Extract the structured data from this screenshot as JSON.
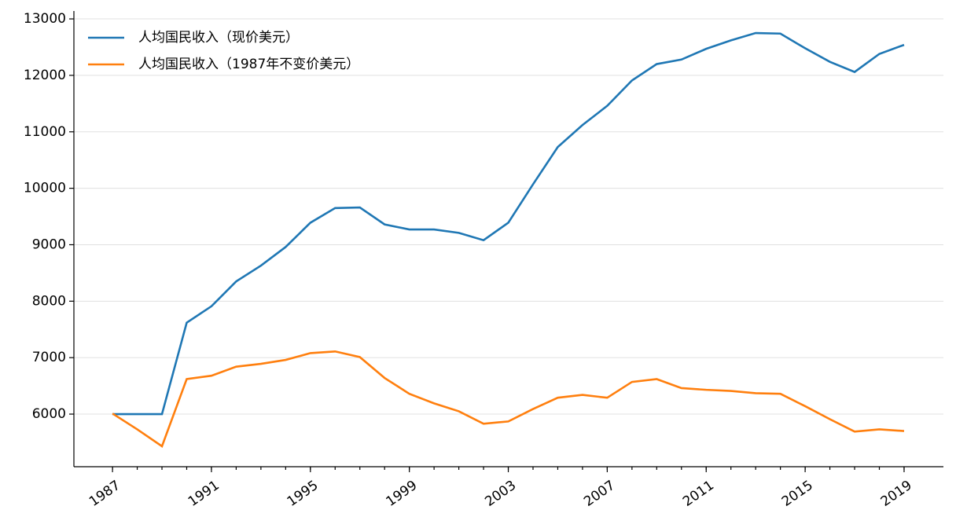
{
  "chart_data": {
    "type": "line",
    "x": [
      1987,
      1988,
      1989,
      1990,
      1991,
      1992,
      1993,
      1994,
      1995,
      1996,
      1997,
      1998,
      1999,
      2000,
      2001,
      2002,
      2003,
      2004,
      2005,
      2006,
      2007,
      2008,
      2009,
      2010,
      2011,
      2012,
      2013,
      2014,
      2015,
      2016,
      2017,
      2018,
      2019
    ],
    "series": [
      {
        "name": "人均国民收入（现价美元）",
        "color": "#1f77b4",
        "values": [
          6000,
          6000,
          6000,
          7620,
          7910,
          8350,
          8630,
          8960,
          9390,
          9650,
          9660,
          9360,
          9270,
          9270,
          9210,
          9080,
          9390,
          10070,
          10730,
          11120,
          11460,
          11910,
          12200,
          12280,
          12470,
          12620,
          12750,
          12740,
          12480,
          12240,
          12060,
          12380,
          12540
        ]
      },
      {
        "name": "人均国民收入（1987年不变价美元）",
        "color": "#ff7f0e",
        "values": [
          6010,
          5730,
          5430,
          6620,
          6680,
          6840,
          6890,
          6960,
          7080,
          7110,
          7010,
          6640,
          6360,
          6190,
          6050,
          5830,
          5870,
          6090,
          6290,
          6340,
          6290,
          6570,
          6620,
          6460,
          6430,
          6410,
          6370,
          6360,
          6140,
          5910,
          5690,
          5730,
          5700
        ]
      }
    ],
    "xlim": [
      1985.44,
      2020.59
    ],
    "xticks": [
      1987,
      1991,
      1995,
      1999,
      2003,
      2007,
      2011,
      2015,
      2019
    ],
    "xminorticks": [
      1987,
      1988,
      1989,
      1990,
      1991,
      1992,
      1993,
      1994,
      1995,
      1996,
      1997,
      1998,
      1999,
      2000,
      2001,
      2002,
      2003,
      2004,
      2005,
      2006,
      2007,
      2008,
      2009,
      2010,
      2011,
      2012,
      2013,
      2014,
      2015,
      2016,
      2017,
      2018,
      2019
    ],
    "ylim": [
      5068,
      13140
    ],
    "yticks": [
      6000,
      7000,
      8000,
      9000,
      10000,
      11000,
      12000,
      13000
    ],
    "grid": true,
    "legend": "upper left"
  }
}
